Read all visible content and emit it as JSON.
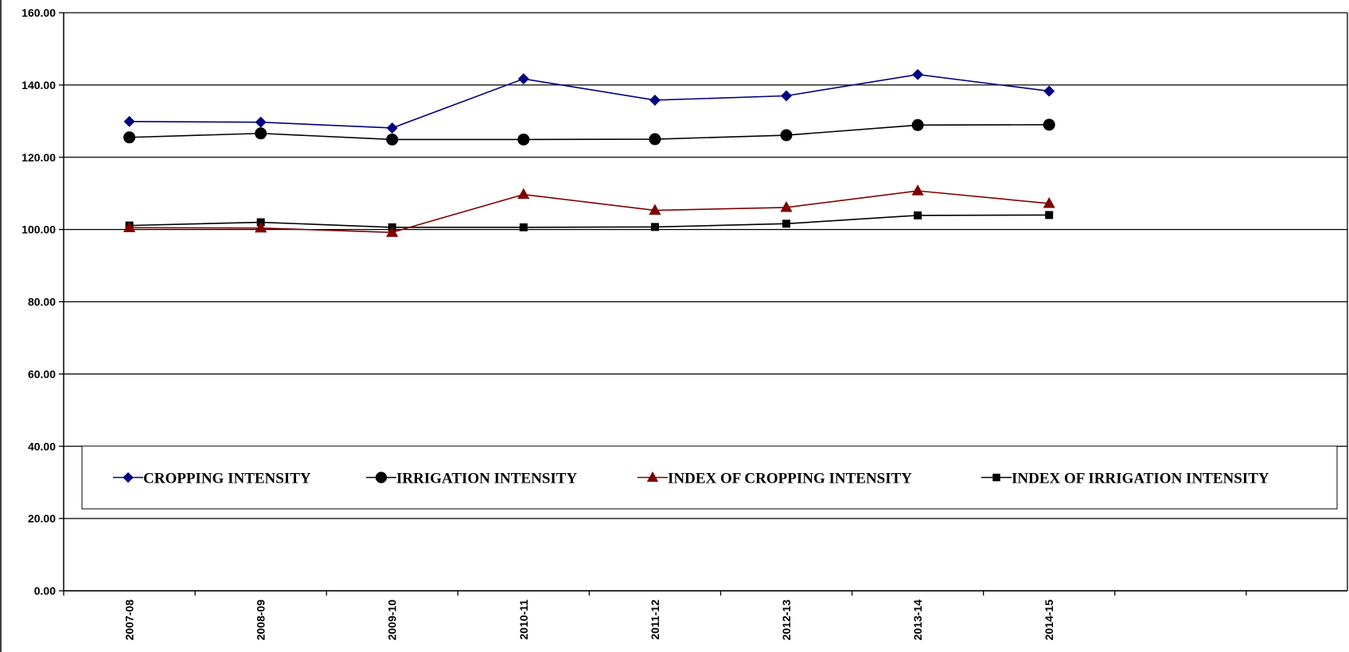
{
  "chart_data": {
    "type": "line",
    "title": "",
    "xlabel": "",
    "ylabel": "",
    "categories": [
      "2007-08",
      "2008-09",
      "2009-10",
      "2010-11",
      "2011-12",
      "2012-13",
      "2013-14",
      "2014-15"
    ],
    "ylim": [
      0,
      160
    ],
    "yticks": [
      "0.00",
      "20.00",
      "40.00",
      "60.00",
      "80.00",
      "100.00",
      "120.00",
      "140.00",
      "160.00"
    ],
    "grid": "horizontal",
    "legend_position": "bottom-inside",
    "series": [
      {
        "name": "CROPPING INTENSITY",
        "color": "#000080",
        "marker": "diamond",
        "values": [
          129.9,
          129.7,
          128.1,
          141.7,
          135.8,
          137.0,
          142.9,
          138.3
        ]
      },
      {
        "name": "IRRIGATION INTENSITY",
        "color": "#000000",
        "marker": "circle",
        "values": [
          125.5,
          126.6,
          124.9,
          124.9,
          125.0,
          126.1,
          128.9,
          129.0
        ]
      },
      {
        "name": "INDEX OF CROPPING INTENSITY",
        "color": "#800000",
        "marker": "triangle",
        "values": [
          100.5,
          100.4,
          99.2,
          109.7,
          105.3,
          106.1,
          110.7,
          107.2
        ]
      },
      {
        "name": "INDEX OF IRRIGATION INTENSITY",
        "color": "#000000",
        "marker": "square",
        "values": [
          101.1,
          102.0,
          100.6,
          100.6,
          100.7,
          101.6,
          103.9,
          104.0
        ]
      }
    ]
  }
}
